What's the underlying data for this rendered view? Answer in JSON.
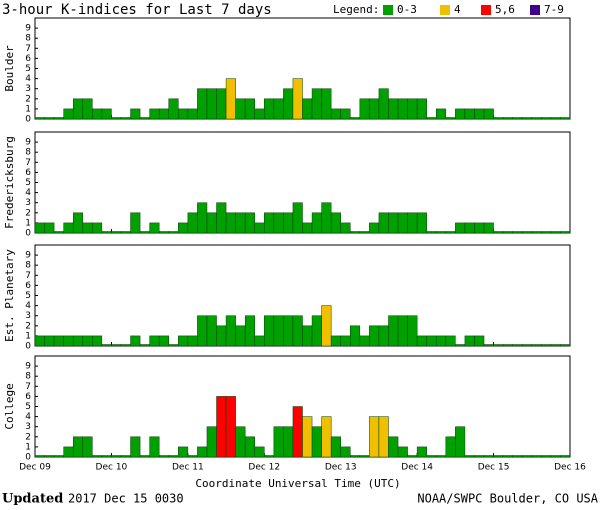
{
  "title": "3-hour K-indices for Last 7 days",
  "legend": {
    "title": "Legend:",
    "items": [
      {
        "name": "0-3",
        "color": "#00a000",
        "min": 0,
        "max": 3
      },
      {
        "name": "4",
        "color": "#f0c000",
        "min": 4,
        "max": 4
      },
      {
        "name": "5,6",
        "color": "#ff0000",
        "min": 5,
        "max": 6
      },
      {
        "name": "7-9",
        "color": "#400090",
        "min": 7,
        "max": 9
      }
    ]
  },
  "x_axis": {
    "label": "Coordinate Universal Time (UTC)",
    "xlim": [
      0,
      56
    ],
    "xticks": [
      {
        "value": 0,
        "label": "Dec 09"
      },
      {
        "value": 8,
        "label": "Dec 10"
      },
      {
        "value": 16,
        "label": "Dec 11"
      },
      {
        "value": 24,
        "label": "Dec 12"
      },
      {
        "value": 32,
        "label": "Dec 13"
      },
      {
        "value": 40,
        "label": "Dec 14"
      },
      {
        "value": 48,
        "label": "Dec 15"
      },
      {
        "value": 56,
        "label": "Dec 16"
      }
    ]
  },
  "footer": {
    "updated_label": "Updated",
    "updated": "2017 Dec 15 0030",
    "source": "NOAA/SWPC Boulder, CO USA"
  },
  "chart_data": [
    {
      "type": "bar",
      "ylabel": "Boulder",
      "ylim": [
        0,
        10
      ],
      "yticks": [
        0,
        1,
        2,
        3,
        4,
        5,
        6,
        7,
        8,
        9
      ],
      "values": [
        0,
        0,
        0,
        1,
        2,
        2,
        1,
        1,
        0,
        0,
        1,
        0,
        1,
        1,
        2,
        1,
        1,
        3,
        3,
        3,
        4,
        2,
        2,
        1,
        2,
        2,
        3,
        4,
        2,
        3,
        3,
        1,
        1,
        0,
        2,
        2,
        3,
        2,
        2,
        2,
        2,
        0,
        1,
        0,
        1,
        1,
        1,
        1,
        0,
        0,
        0,
        0,
        0,
        0,
        0,
        0
      ]
    },
    {
      "type": "bar",
      "ylabel": "Fredericksburg",
      "ylim": [
        0,
        10
      ],
      "yticks": [
        0,
        1,
        2,
        3,
        4,
        5,
        6,
        7,
        8,
        9
      ],
      "values": [
        1,
        1,
        0,
        1,
        2,
        1,
        1,
        0,
        0,
        0,
        2,
        0,
        1,
        0,
        0,
        1,
        2,
        3,
        2,
        3,
        2,
        2,
        2,
        1,
        2,
        2,
        2,
        3,
        1,
        2,
        3,
        2,
        1,
        0,
        0,
        1,
        2,
        2,
        2,
        2,
        2,
        0,
        0,
        0,
        1,
        1,
        1,
        1,
        0,
        0,
        0,
        0,
        0,
        0,
        0,
        0
      ]
    },
    {
      "type": "bar",
      "ylabel": "Est. Planetary",
      "ylim": [
        0,
        10
      ],
      "yticks": [
        0,
        1,
        2,
        3,
        4,
        5,
        6,
        7,
        8,
        9
      ],
      "values": [
        1,
        1,
        1,
        1,
        1,
        1,
        1,
        0,
        0,
        0,
        1,
        0,
        1,
        1,
        0,
        1,
        1,
        3,
        3,
        2,
        3,
        2,
        3,
        1,
        3,
        3,
        3,
        3,
        2,
        3,
        4,
        1,
        1,
        2,
        1,
        2,
        2,
        3,
        3,
        3,
        1,
        1,
        1,
        1,
        0,
        1,
        1,
        0,
        0,
        0,
        0,
        0,
        0,
        0,
        0,
        0
      ]
    },
    {
      "type": "bar",
      "ylabel": "College",
      "ylim": [
        0,
        10
      ],
      "yticks": [
        0,
        1,
        2,
        3,
        4,
        5,
        6,
        7,
        8,
        9
      ],
      "values": [
        0,
        0,
        0,
        1,
        2,
        2,
        0,
        0,
        0,
        0,
        2,
        0,
        2,
        0,
        0,
        1,
        0,
        1,
        3,
        6,
        6,
        3,
        2,
        1,
        0,
        3,
        3,
        5,
        4,
        3,
        4,
        2,
        1,
        0,
        0,
        4,
        4,
        2,
        1,
        0,
        1,
        0,
        0,
        2,
        3,
        0,
        0,
        0,
        0,
        0,
        0,
        0,
        0,
        0,
        0,
        0
      ]
    }
  ]
}
